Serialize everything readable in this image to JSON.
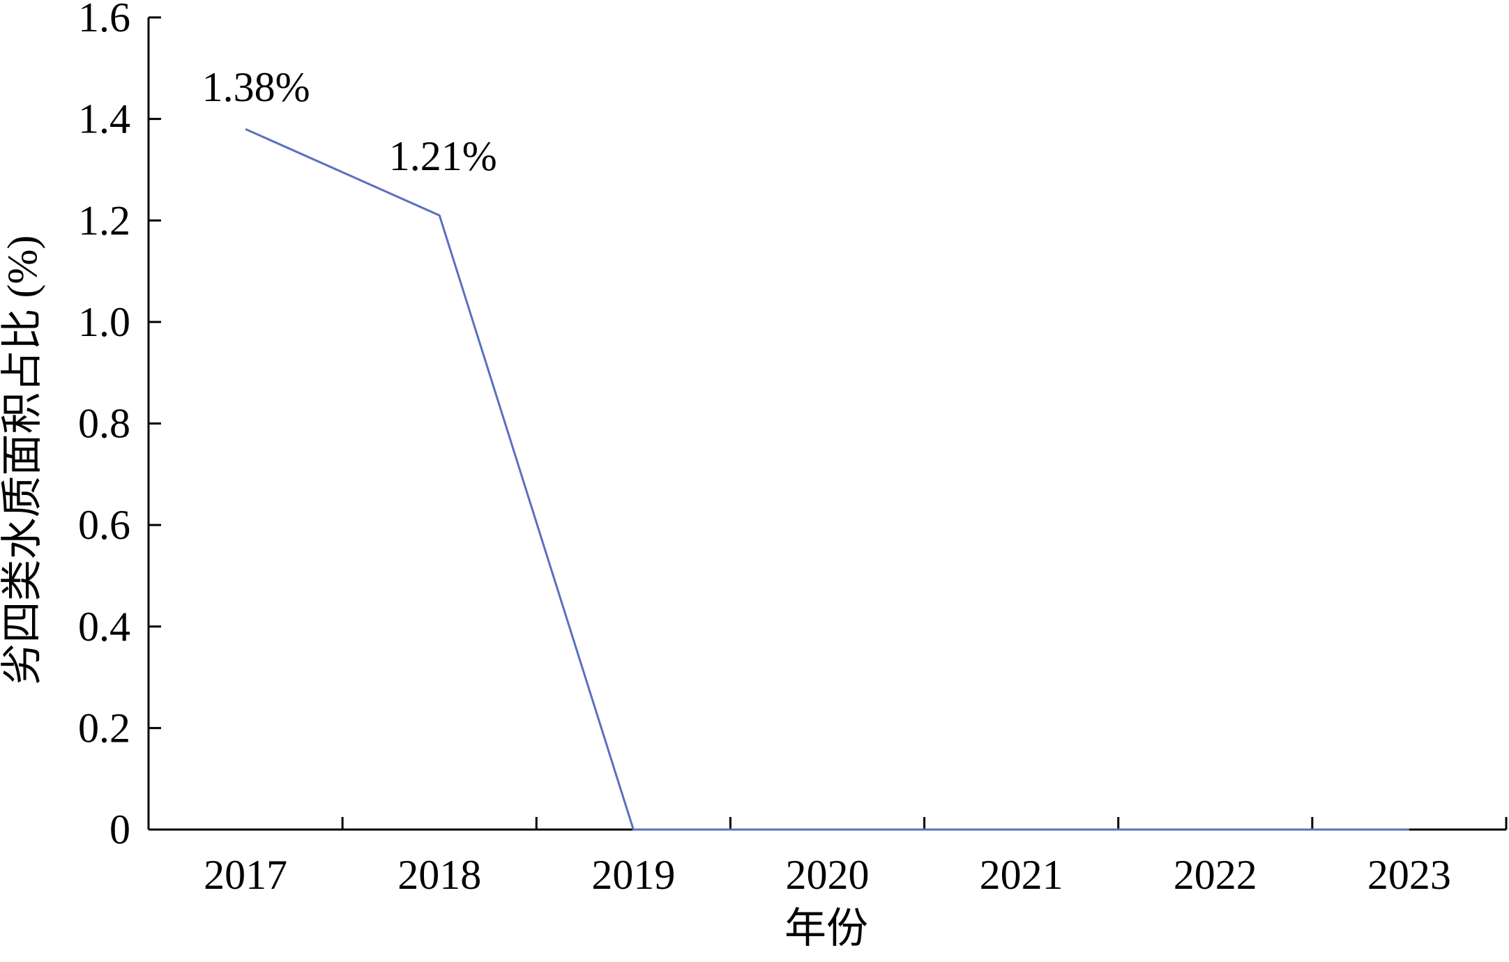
{
  "chart_data": {
    "type": "line",
    "title": "",
    "xlabel": "年份",
    "ylabel": "劣四类水质面积占比 (%)",
    "categories": [
      "2017",
      "2018",
      "2019",
      "2020",
      "2021",
      "2022",
      "2023"
    ],
    "series": [
      {
        "values": [
          1.38,
          1.21,
          0,
          0,
          0,
          0,
          0
        ],
        "color": "#5a6fbf"
      }
    ],
    "data_labels": [
      {
        "index": 0,
        "text": "1.38%"
      },
      {
        "index": 1,
        "text": "1.21%"
      }
    ],
    "yticks": [
      "0",
      "0.2",
      "0.4",
      "0.6",
      "0.8",
      "1.0",
      "1.2",
      "1.4",
      "1.6"
    ],
    "ylim": [
      0,
      1.6
    ],
    "grid": false,
    "legend": "none"
  }
}
